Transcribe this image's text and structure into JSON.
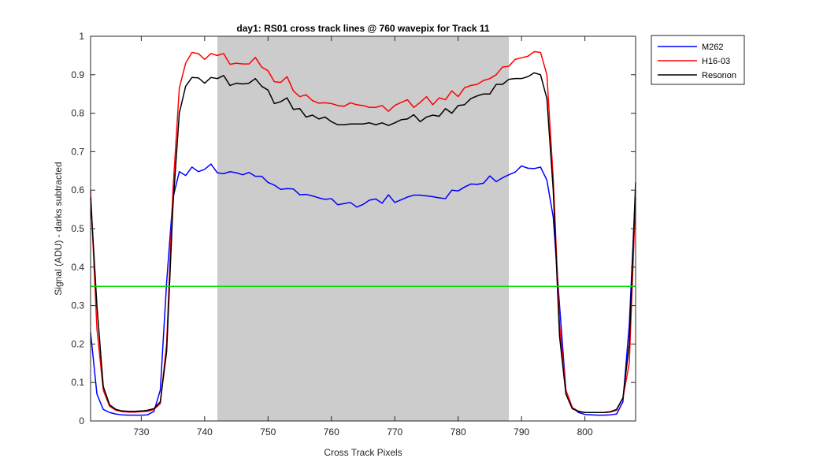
{
  "chart_data": {
    "type": "line",
    "title": "day1: RS01  cross track lines @ 760 wavepix for Track 11",
    "xlabel": "Cross Track Pixels",
    "ylabel": "Signal (ADU) - darks subtracted",
    "xlim": [
      722,
      808
    ],
    "ylim": [
      0,
      1
    ],
    "xticks": [
      730,
      740,
      750,
      760,
      770,
      780,
      790,
      800
    ],
    "yticks": [
      0,
      0.1,
      0.2,
      0.3,
      0.4,
      0.5,
      0.6,
      0.7,
      0.8,
      0.9,
      1
    ],
    "grid": false,
    "legend_position": "outside top-right",
    "shaded_region": {
      "x_start": 742,
      "x_end": 788,
      "color": "#cccccc"
    },
    "reference_line": {
      "y": 0.35,
      "color": "#00dd00"
    },
    "x": [
      722,
      723,
      724,
      725,
      726,
      727,
      728,
      729,
      730,
      731,
      732,
      733,
      734,
      735,
      736,
      737,
      738,
      739,
      740,
      741,
      742,
      743,
      744,
      745,
      746,
      747,
      748,
      749,
      750,
      751,
      752,
      753,
      754,
      755,
      756,
      757,
      758,
      759,
      760,
      761,
      762,
      763,
      764,
      765,
      766,
      767,
      768,
      769,
      770,
      771,
      772,
      773,
      774,
      775,
      776,
      777,
      778,
      779,
      780,
      781,
      782,
      783,
      784,
      785,
      786,
      787,
      788,
      789,
      790,
      791,
      792,
      793,
      794,
      795,
      796,
      797,
      798,
      799,
      800,
      801,
      802,
      803,
      804,
      805,
      806,
      807,
      808
    ],
    "series": [
      {
        "name": "M262",
        "color": "#0000ff",
        "values": [
          0.23,
          0.07,
          0.03,
          0.022,
          0.018,
          0.016,
          0.015,
          0.015,
          0.015,
          0.016,
          0.025,
          0.08,
          0.36,
          0.58,
          0.648,
          0.638,
          0.66,
          0.648,
          0.654,
          0.668,
          0.645,
          0.643,
          0.648,
          0.645,
          0.64,
          0.646,
          0.636,
          0.636,
          0.62,
          0.613,
          0.602,
          0.604,
          0.603,
          0.588,
          0.589,
          0.585,
          0.58,
          0.576,
          0.578,
          0.562,
          0.565,
          0.568,
          0.556,
          0.563,
          0.574,
          0.577,
          0.566,
          0.588,
          0.568,
          0.575,
          0.582,
          0.587,
          0.587,
          0.585,
          0.583,
          0.58,
          0.578,
          0.6,
          0.598,
          0.608,
          0.616,
          0.615,
          0.618,
          0.637,
          0.622,
          0.632,
          0.64,
          0.647,
          0.663,
          0.657,
          0.656,
          0.66,
          0.626,
          0.53,
          0.3,
          0.08,
          0.035,
          0.022,
          0.017,
          0.016,
          0.015,
          0.015,
          0.016,
          0.018,
          0.05,
          0.25,
          0.6
        ]
      },
      {
        "name": "H16-03",
        "color": "#ff0000",
        "values": [
          0.6,
          0.24,
          0.08,
          0.038,
          0.028,
          0.024,
          0.023,
          0.023,
          0.024,
          0.025,
          0.03,
          0.045,
          0.2,
          0.6,
          0.865,
          0.93,
          0.958,
          0.955,
          0.94,
          0.955,
          0.95,
          0.955,
          0.927,
          0.93,
          0.928,
          0.928,
          0.945,
          0.92,
          0.91,
          0.882,
          0.88,
          0.895,
          0.858,
          0.843,
          0.848,
          0.833,
          0.826,
          0.827,
          0.825,
          0.82,
          0.818,
          0.827,
          0.822,
          0.82,
          0.815,
          0.815,
          0.82,
          0.805,
          0.82,
          0.828,
          0.835,
          0.815,
          0.828,
          0.843,
          0.822,
          0.84,
          0.835,
          0.858,
          0.843,
          0.866,
          0.872,
          0.875,
          0.885,
          0.89,
          0.9,
          0.92,
          0.922,
          0.94,
          0.944,
          0.948,
          0.96,
          0.958,
          0.9,
          0.63,
          0.25,
          0.08,
          0.035,
          0.025,
          0.022,
          0.022,
          0.022,
          0.022,
          0.023,
          0.028,
          0.06,
          0.15,
          0.58
        ]
      },
      {
        "name": "Resonon",
        "color": "#000000",
        "values": [
          0.58,
          0.3,
          0.09,
          0.042,
          0.03,
          0.026,
          0.025,
          0.025,
          0.026,
          0.028,
          0.032,
          0.05,
          0.18,
          0.56,
          0.8,
          0.87,
          0.893,
          0.892,
          0.878,
          0.893,
          0.89,
          0.898,
          0.872,
          0.878,
          0.876,
          0.878,
          0.89,
          0.87,
          0.86,
          0.825,
          0.83,
          0.84,
          0.81,
          0.812,
          0.79,
          0.795,
          0.785,
          0.79,
          0.778,
          0.77,
          0.77,
          0.772,
          0.772,
          0.772,
          0.775,
          0.77,
          0.775,
          0.768,
          0.775,
          0.783,
          0.785,
          0.796,
          0.778,
          0.79,
          0.795,
          0.792,
          0.812,
          0.8,
          0.82,
          0.822,
          0.838,
          0.845,
          0.85,
          0.85,
          0.875,
          0.875,
          0.888,
          0.89,
          0.89,
          0.895,
          0.905,
          0.9,
          0.838,
          0.6,
          0.22,
          0.07,
          0.032,
          0.025,
          0.022,
          0.022,
          0.022,
          0.022,
          0.024,
          0.03,
          0.06,
          0.2,
          0.62
        ]
      }
    ]
  }
}
